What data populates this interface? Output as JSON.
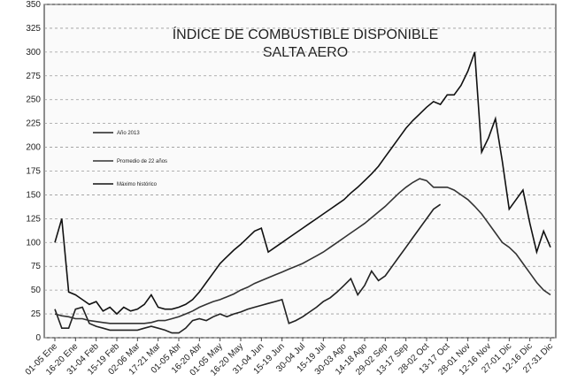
{
  "chart_data": {
    "type": "line",
    "title": "ÍNDICE DE COMBUSTIBLE DISPONIBLE",
    "subtitle": "SALTA AERO",
    "categories": [
      "01-05 Ene",
      null,
      null,
      "16-20 Ene",
      null,
      null,
      "31-04 Feb",
      null,
      null,
      "15-19 Feb",
      null,
      null,
      "02-06 Mar",
      null,
      null,
      "17-21 Mar",
      null,
      null,
      "01-05 Abr",
      null,
      null,
      "16-20 Abr",
      null,
      null,
      "01-05 May",
      null,
      null,
      "16-20 May",
      null,
      null,
      "31-04 Jun",
      null,
      null,
      "15-19 Jun",
      null,
      null,
      "30-04 Jul",
      null,
      null,
      "15-19 Jul",
      null,
      null,
      "30-03 Ago",
      null,
      null,
      "14-18 Ago",
      null,
      null,
      "29-02 Sep",
      null,
      null,
      "13-17 Sep",
      null,
      null,
      "28-02 Oct",
      null,
      null,
      "13-17 Oct",
      null,
      null,
      "28-01 Nov",
      null,
      null,
      "12-16 Nov",
      null,
      null,
      "27-01 Dic",
      null,
      null,
      "12-16 Dic",
      null,
      null,
      "27-31 Dic"
    ],
    "series": [
      {
        "name": "Año 2013",
        "color": "#222222",
        "values": [
          30,
          10,
          10,
          30,
          32,
          15,
          12,
          10,
          8,
          8,
          8,
          8,
          8,
          10,
          12,
          10,
          8,
          5,
          5,
          10,
          18,
          20,
          18,
          22,
          25,
          22,
          25,
          27,
          30,
          32,
          34,
          36,
          38,
          40,
          15,
          18,
          22,
          27,
          32,
          38,
          42,
          48,
          55,
          62,
          45,
          55,
          70,
          60,
          65,
          75,
          85,
          95,
          105,
          115,
          125,
          135,
          140,
          null,
          null,
          null,
          null,
          null,
          null,
          null,
          null,
          null,
          null,
          null,
          null,
          null,
          null,
          null,
          null
        ]
      },
      {
        "name": "Promedio de 22 años",
        "color": "#333333",
        "values": [
          25,
          23,
          22,
          20,
          20,
          18,
          17,
          16,
          15,
          15,
          15,
          15,
          15,
          15,
          16,
          18,
          18,
          20,
          22,
          25,
          28,
          32,
          35,
          38,
          40,
          43,
          46,
          50,
          53,
          57,
          60,
          63,
          66,
          69,
          72,
          75,
          78,
          82,
          86,
          90,
          95,
          100,
          105,
          110,
          115,
          120,
          126,
          132,
          138,
          145,
          152,
          158,
          163,
          167,
          165,
          158,
          158,
          158,
          155,
          150,
          145,
          138,
          130,
          120,
          110,
          100,
          95,
          88,
          78,
          68,
          58,
          50,
          45
        ]
      },
      {
        "name": "Máximo histórico",
        "color": "#111111",
        "values": [
          100,
          125,
          48,
          45,
          40,
          35,
          38,
          28,
          32,
          25,
          32,
          28,
          30,
          35,
          45,
          32,
          30,
          30,
          32,
          35,
          40,
          48,
          58,
          68,
          78,
          85,
          92,
          98,
          105,
          112,
          115,
          90,
          95,
          100,
          105,
          110,
          115,
          120,
          125,
          130,
          135,
          140,
          145,
          152,
          158,
          165,
          172,
          180,
          190,
          200,
          210,
          220,
          228,
          235,
          242,
          248,
          245,
          255,
          255,
          265,
          280,
          300,
          195,
          210,
          230,
          185,
          135,
          145,
          155,
          120,
          90,
          112,
          95
        ]
      }
    ],
    "ylim": [
      0,
      350
    ],
    "yticks": [
      0,
      25,
      50,
      75,
      100,
      125,
      150,
      175,
      200,
      225,
      250,
      275,
      300,
      325,
      350
    ],
    "grid": true
  }
}
